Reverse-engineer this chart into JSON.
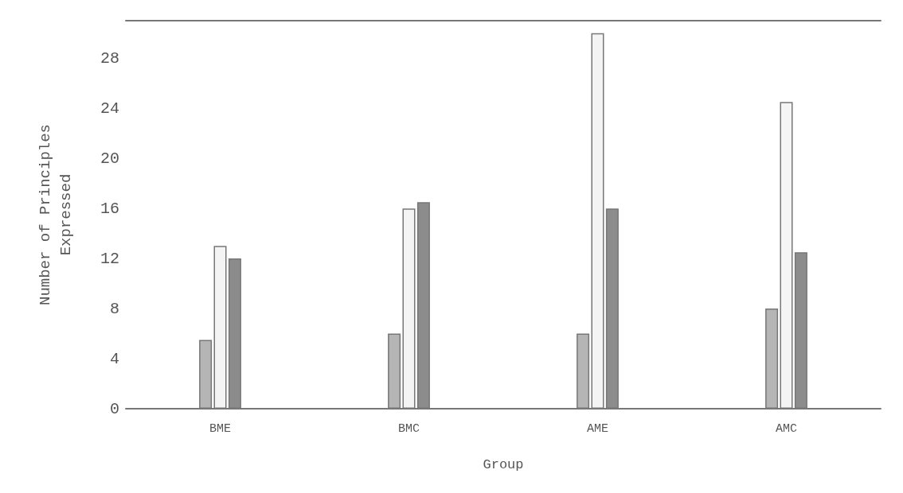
{
  "chart_data": {
    "type": "bar",
    "xlabel": "Group",
    "ylabel": "Number of Principles\nExpressed",
    "categories": [
      "BME",
      "BMC",
      "AME",
      "AMC"
    ],
    "series": [
      {
        "color": "#b5b5b5",
        "values": [
          5.5,
          6,
          6,
          8
        ]
      },
      {
        "color": "#f4f4f4",
        "values": [
          13,
          16,
          30,
          24.5
        ]
      },
      {
        "color": "#8c8c8c",
        "values": [
          12,
          16.5,
          16,
          12.5
        ]
      }
    ],
    "ylim": [
      0,
      31
    ],
    "yticks": [
      0,
      4,
      8,
      12,
      16,
      20,
      24,
      28
    ],
    "grid": false
  }
}
